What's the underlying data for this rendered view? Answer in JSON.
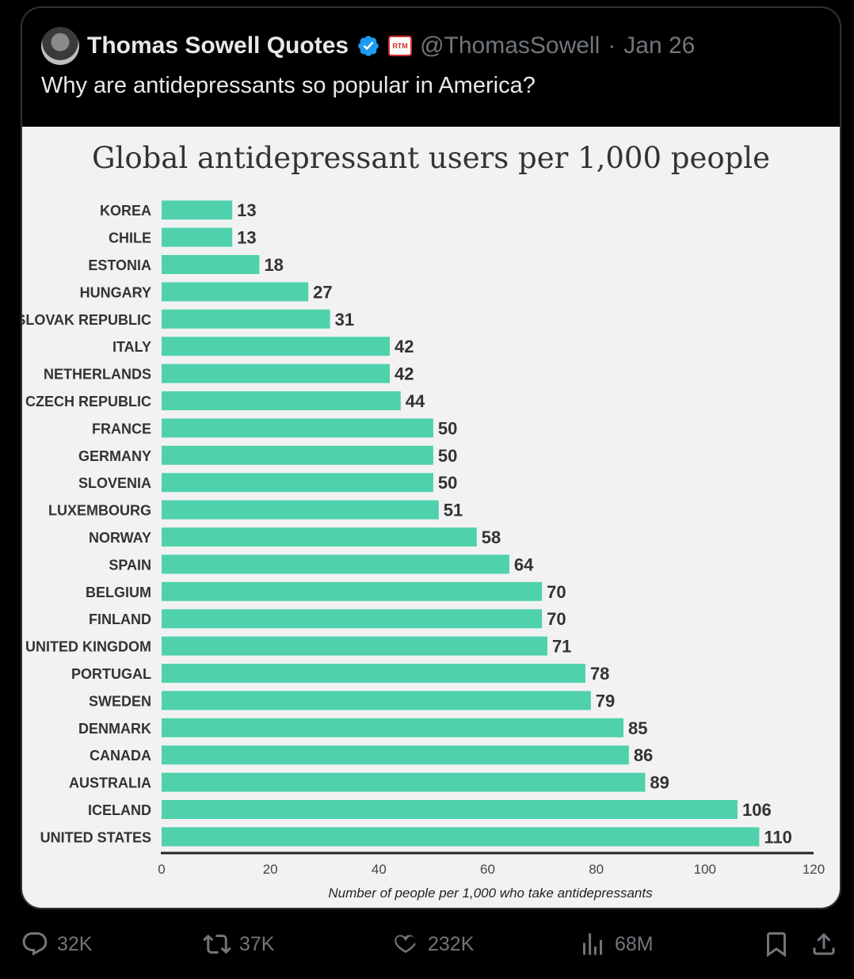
{
  "tweet": {
    "author_name": "Thomas Sowell Quotes",
    "handle": "@ThomasSowell",
    "separator": "·",
    "date": "Jan 26",
    "badge_text": "RTM",
    "text": "Why are antidepressants so popular in America?"
  },
  "actions": {
    "replies": "32K",
    "reposts": "37K",
    "likes": "232K",
    "views": "68M"
  },
  "colors": {
    "bar": "#4fd1ac",
    "chart_bg": "#f2f2f2",
    "verified": "#1d9bf0"
  },
  "chart_data": {
    "type": "bar",
    "orientation": "horizontal",
    "title": "Global antidepressant users per 1,000 people",
    "xlabel": "Number of people per 1,000 who take antidepressants",
    "ylabel": "",
    "xlim": [
      0,
      120
    ],
    "xticks": [
      0,
      20,
      40,
      60,
      80,
      100,
      120
    ],
    "grid": false,
    "categories": [
      "KOREA",
      "CHILE",
      "ESTONIA",
      "HUNGARY",
      "SLOVAK REPUBLIC",
      "ITALY",
      "NETHERLANDS",
      "CZECH REPUBLIC",
      "FRANCE",
      "GERMANY",
      "SLOVENIA",
      "LUXEMBOURG",
      "NORWAY",
      "SPAIN",
      "BELGIUM",
      "FINLAND",
      "UNITED KINGDOM",
      "PORTUGAL",
      "SWEDEN",
      "DENMARK",
      "CANADA",
      "AUSTRALIA",
      "ICELAND",
      "UNITED STATES"
    ],
    "values": [
      13,
      13,
      18,
      27,
      31,
      42,
      42,
      44,
      50,
      50,
      50,
      51,
      58,
      64,
      70,
      70,
      71,
      78,
      79,
      85,
      86,
      89,
      106,
      110
    ]
  }
}
